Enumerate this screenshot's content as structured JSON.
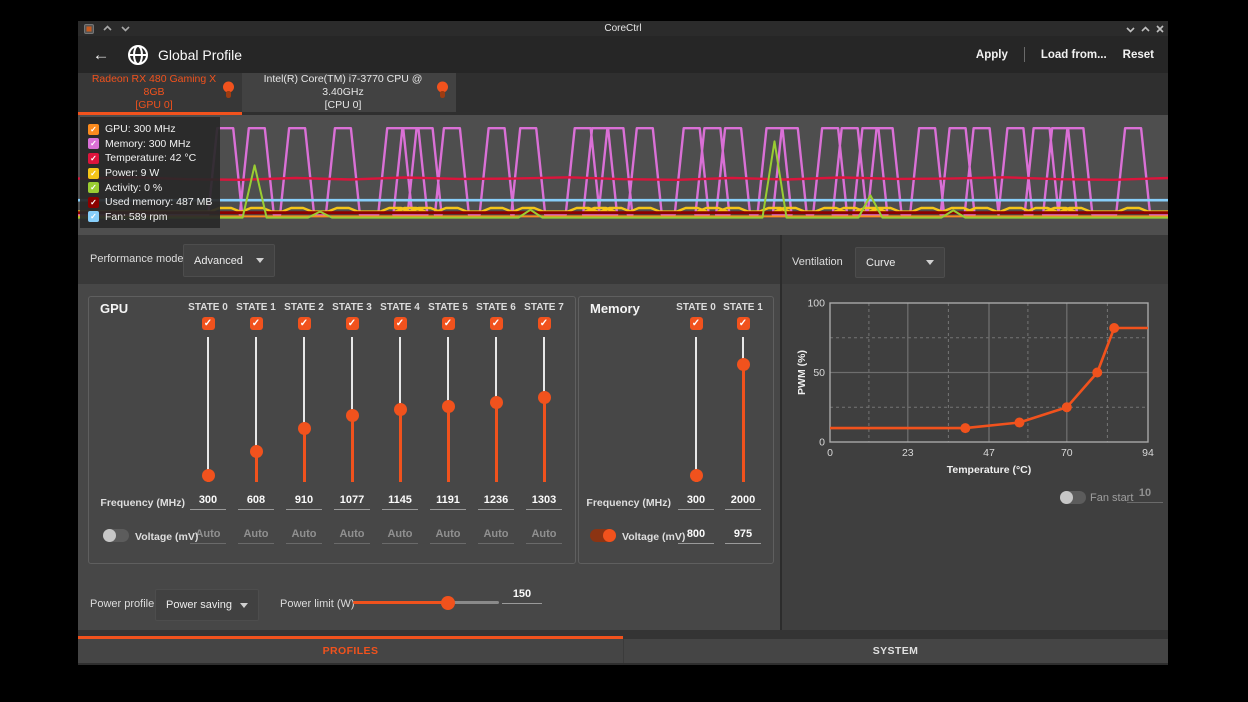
{
  "colors": {
    "accent": "#f1521d"
  },
  "window": {
    "title": "CoreCtrl"
  },
  "header": {
    "title": "Global Profile",
    "apply_label": "Apply",
    "load_label": "Load from...",
    "reset_label": "Reset"
  },
  "device_tabs": [
    {
      "name": "Radeon RX 480 Gaming X 8GB",
      "sub": "[GPU 0]",
      "selected": true
    },
    {
      "name": "Intel(R) Core(TM) i7-3770 CPU @ 3.40GHz",
      "sub": "[CPU 0]",
      "selected": false
    }
  ],
  "legend": [
    {
      "label": "GPU: 300 MHz",
      "color": "#fb8b1e"
    },
    {
      "label": "Memory: 300 MHz",
      "color": "#da70d6"
    },
    {
      "label": "Temperature: 42 °C",
      "color": "#dc143c"
    },
    {
      "label": "Power: 9 W",
      "color": "#f5c518"
    },
    {
      "label": "Activity: 0 %",
      "color": "#9acd32"
    },
    {
      "label": "Used memory: 487 MB",
      "color": "#8b0000"
    },
    {
      "label": "Fan: 589 rpm",
      "color": "#87cefa"
    }
  ],
  "performance_mode": {
    "label": "Performance mode",
    "value": "Advanced"
  },
  "gpu": {
    "title": "GPU",
    "frequency_label": "Frequency (MHz)",
    "voltage_label": "Voltage (mV)",
    "voltage_enabled": false,
    "states": [
      {
        "label": "STATE 0",
        "checked": true,
        "frequency": "300",
        "voltage": "Auto"
      },
      {
        "label": "STATE 1",
        "checked": true,
        "frequency": "608",
        "voltage": "Auto"
      },
      {
        "label": "STATE 2",
        "checked": true,
        "frequency": "910",
        "voltage": "Auto"
      },
      {
        "label": "STATE 3",
        "checked": true,
        "frequency": "1077",
        "voltage": "Auto"
      },
      {
        "label": "STATE 4",
        "checked": true,
        "frequency": "1145",
        "voltage": "Auto"
      },
      {
        "label": "STATE 5",
        "checked": true,
        "frequency": "1191",
        "voltage": "Auto"
      },
      {
        "label": "STATE 6",
        "checked": true,
        "frequency": "1236",
        "voltage": "Auto"
      },
      {
        "label": "STATE 7",
        "checked": true,
        "frequency": "1303",
        "voltage": "Auto"
      }
    ]
  },
  "memory": {
    "title": "Memory",
    "frequency_label": "Frequency (MHz)",
    "voltage_label": "Voltage (mV)",
    "voltage_enabled": true,
    "states": [
      {
        "label": "STATE 0",
        "checked": true,
        "frequency": "300",
        "voltage": "800"
      },
      {
        "label": "STATE 1",
        "checked": true,
        "frequency": "2000",
        "voltage": "975"
      }
    ]
  },
  "power": {
    "profile_label": "Power profile",
    "profile_value": "Power saving",
    "limit_label": "Power limit (W)",
    "limit_value": "150",
    "limit_fraction": 0.65
  },
  "ventilation": {
    "label": "Ventilation",
    "mode_value": "Curve",
    "fan_start_label": "Fan start",
    "fan_start_value": "10",
    "fan_start_enabled": false
  },
  "bottom_tabs": [
    {
      "label": "PROFILES",
      "active": true
    },
    {
      "label": "SYSTEM",
      "active": false
    }
  ],
  "chart_data": [
    {
      "id": "fan-curve",
      "type": "line",
      "title": "",
      "xlabel": "Temperature (°C)",
      "ylabel": "PWM (%)",
      "xlim": [
        0,
        94
      ],
      "ylim": [
        0,
        100
      ],
      "xticks": [
        0,
        23,
        47,
        70,
        94
      ],
      "yticks": [
        0,
        50,
        100
      ],
      "grid": true,
      "line_color": "#f1521d",
      "points": [
        [
          0,
          10
        ],
        [
          40,
          10
        ],
        [
          56,
          14
        ],
        [
          70,
          25
        ],
        [
          79,
          50
        ],
        [
          84,
          82
        ],
        [
          94,
          82
        ]
      ],
      "markers": [
        [
          40,
          10
        ],
        [
          56,
          14
        ],
        [
          70,
          25
        ],
        [
          79,
          50
        ],
        [
          84,
          82
        ]
      ]
    },
    {
      "id": "monitor",
      "type": "line",
      "title": "",
      "x_axis": "time (hidden)",
      "y_axis": "percent of range (hidden)",
      "series": [
        {
          "name": "Memory",
          "color": "#da70d6",
          "baseline_pct": 83,
          "peak_pct": 11,
          "pulse_centers_pct": [
            13.5,
            16.4,
            20.1,
            24.3,
            29.1,
            30.5,
            31.8,
            34.3,
            38.4,
            41.3,
            46.3,
            47.9,
            49.3,
            52.0,
            56.3,
            58.2,
            60.1,
            63.9,
            65.3,
            69.0,
            70.8,
            72.7,
            74.0,
            77.9,
            80.7,
            82.9,
            86.0,
            88.4,
            90.1,
            91.5,
            96.8
          ]
        },
        {
          "name": "Temperature",
          "color": "#dc143c",
          "baseline_pct": 53
        },
        {
          "name": "Fan",
          "color": "#87cefa",
          "baseline_pct": 71
        },
        {
          "name": "Power",
          "color": "#f5c518",
          "baseline_pct": 80.5,
          "bump_peak_pct": 77.5
        },
        {
          "name": "Used memory",
          "color": "#8b0000",
          "baseline_pct": 81.5
        },
        {
          "name": "GPU",
          "color": "#fb8b1e",
          "baseline_pct": 84.5
        },
        {
          "name": "Activity",
          "color": "#9acd32",
          "baseline_pct": 85.5,
          "spikes_pct": [
            [
              16.2,
              42
            ],
            [
              22.2,
              80.5
            ],
            [
              41.5,
              79
            ],
            [
              63.9,
              22
            ],
            [
              72.7,
              67
            ],
            [
              80.3,
              79.5
            ]
          ]
        }
      ]
    }
  ]
}
